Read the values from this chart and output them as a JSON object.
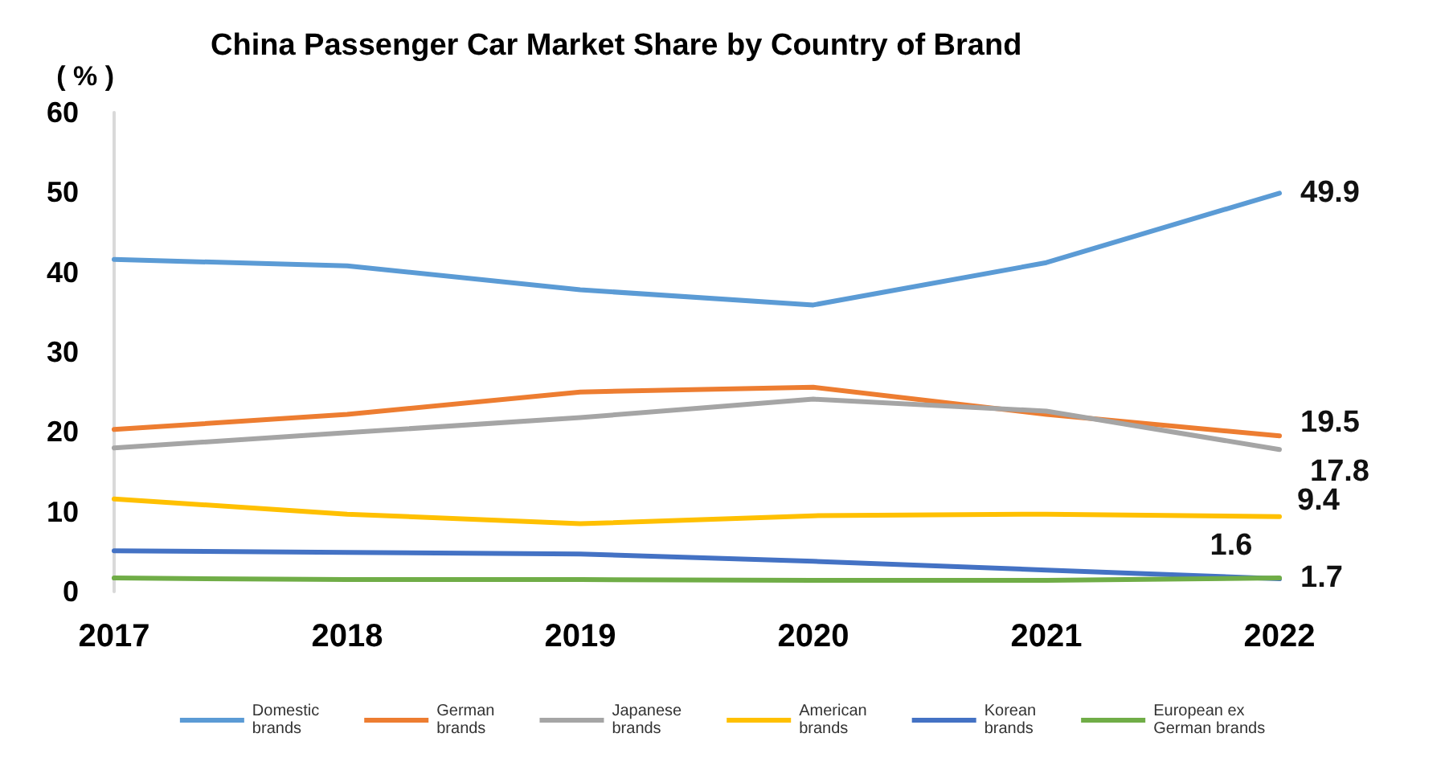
{
  "chart_data": {
    "type": "line",
    "title": "China Passenger Car Market Share by Country of Brand",
    "ylabel": "( % )",
    "categories": [
      "2017",
      "2018",
      "2019",
      "2020",
      "2021",
      "2022"
    ],
    "series": [
      {
        "name": "Domestic\nbrands",
        "color": "#5b9bd5",
        "values": [
          41.6,
          40.8,
          37.8,
          35.9,
          41.2,
          49.9
        ],
        "value_labels": [
          null,
          null,
          null,
          null,
          null,
          "49.9"
        ]
      },
      {
        "name": "German\nbrands",
        "color": "#ed7d31",
        "values": [
          20.3,
          22.2,
          25.0,
          25.6,
          22.2,
          19.5
        ],
        "value_labels": [
          null,
          null,
          null,
          null,
          null,
          "19.5"
        ]
      },
      {
        "name": "Japanese\nbrands",
        "color": "#a5a5a5",
        "values": [
          18.0,
          19.9,
          21.8,
          24.1,
          22.6,
          17.8
        ],
        "value_labels": [
          null,
          null,
          null,
          null,
          null,
          "17.8"
        ]
      },
      {
        "name": "American\nbrands",
        "color": "#ffc000",
        "values": [
          11.6,
          9.7,
          8.5,
          9.5,
          9.7,
          9.4
        ],
        "value_labels": [
          null,
          null,
          null,
          null,
          null,
          "9.4"
        ]
      },
      {
        "name": "Korean\nbrands",
        "color": "#4472c4",
        "values": [
          5.1,
          4.9,
          4.7,
          3.8,
          2.7,
          1.6
        ],
        "value_labels": [
          null,
          null,
          null,
          null,
          null,
          "1.6"
        ]
      },
      {
        "name": "European ex\nGerman brands",
        "color": "#70ad47",
        "values": [
          1.7,
          1.5,
          1.5,
          1.4,
          1.4,
          1.7
        ],
        "value_labels": [
          null,
          null,
          null,
          null,
          null,
          "1.7"
        ]
      }
    ],
    "ylim": [
      0,
      60
    ],
    "yticks": [
      0,
      10,
      20,
      30,
      40,
      50,
      60
    ],
    "grid": false,
    "legend": "bottom",
    "marker": "none",
    "line_style": "solid"
  }
}
